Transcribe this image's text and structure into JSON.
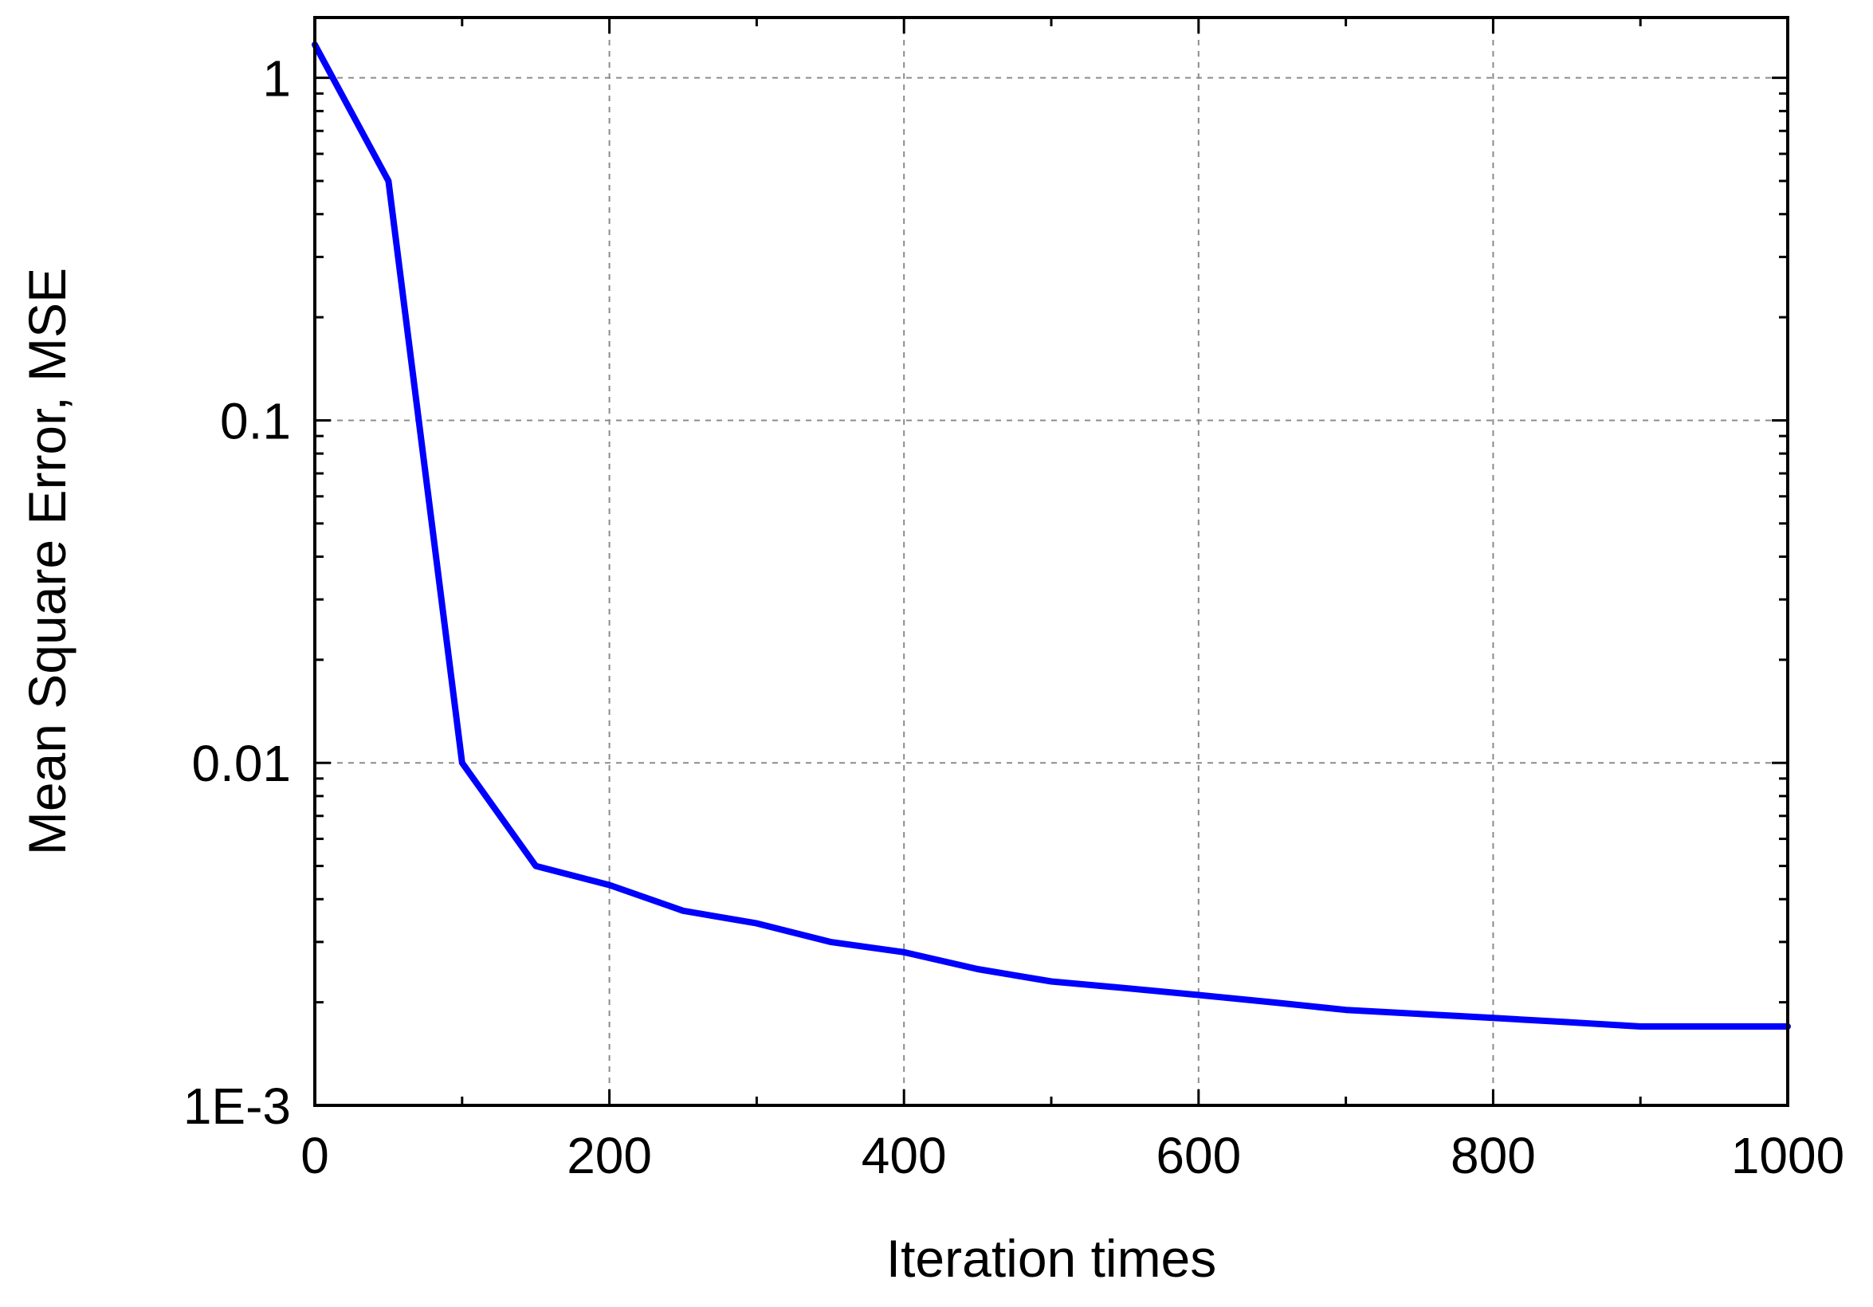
{
  "chart_data": {
    "type": "line",
    "title": "",
    "xlabel": "Iteration times",
    "ylabel": "Mean Square Error, MSE",
    "x_scale": "linear",
    "y_scale": "log",
    "xlim": [
      0,
      1000
    ],
    "ylim": [
      0.001,
      1.5
    ],
    "grid": true,
    "legend": "none",
    "x_ticks": [
      {
        "value": 0,
        "label": "0"
      },
      {
        "value": 200,
        "label": "200"
      },
      {
        "value": 400,
        "label": "400"
      },
      {
        "value": 600,
        "label": "600"
      },
      {
        "value": 800,
        "label": "800"
      },
      {
        "value": 1000,
        "label": "1000"
      }
    ],
    "x_minor_ticks": [
      100,
      300,
      500,
      700,
      900
    ],
    "y_ticks": [
      {
        "value": 1,
        "label": "1"
      },
      {
        "value": 0.1,
        "label": "0.1"
      },
      {
        "value": 0.01,
        "label": "0.01"
      },
      {
        "value": 0.001,
        "label": "1E-3"
      }
    ],
    "series": [
      {
        "color": "#0000ff",
        "x": [
          0,
          50,
          100,
          150,
          200,
          250,
          300,
          350,
          400,
          450,
          500,
          550,
          600,
          650,
          700,
          750,
          800,
          850,
          900,
          950,
          1000
        ],
        "y": [
          1.25,
          0.5,
          0.01,
          0.005,
          0.0044,
          0.0037,
          0.0034,
          0.003,
          0.0028,
          0.0025,
          0.0023,
          0.0022,
          0.0021,
          0.002,
          0.0019,
          0.00185,
          0.0018,
          0.00175,
          0.0017,
          0.0017,
          0.0017
        ]
      }
    ]
  }
}
